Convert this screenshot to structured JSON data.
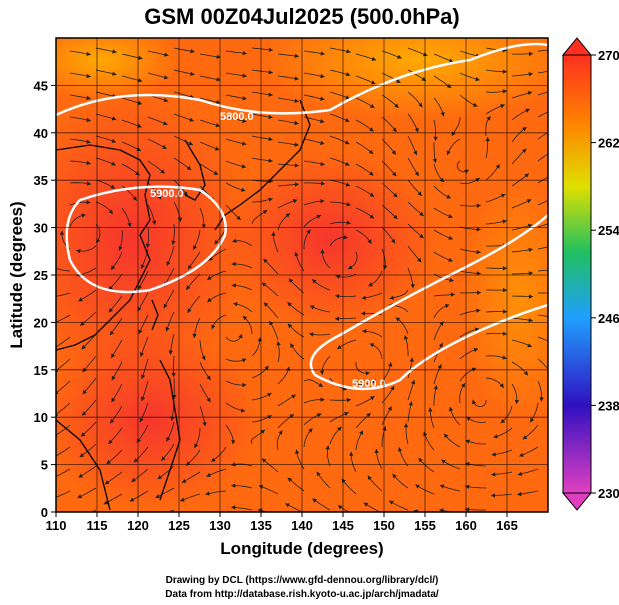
{
  "chart_data": {
    "type": "heatmap",
    "title": "GSM 00Z04Jul2025 (500.0hPa)",
    "xlabel": "Longitude (degrees)",
    "ylabel": "Latitude  (degrees)",
    "xlim": [
      110,
      170
    ],
    "ylim": [
      0,
      50
    ],
    "xticks": [
      "110",
      "115",
      "120",
      "125",
      "130",
      "135",
      "140",
      "145",
      "150",
      "155",
      "160",
      "165"
    ],
    "yticks": [
      "0",
      "5",
      "10",
      "15",
      "20",
      "25",
      "30",
      "35",
      "40",
      "45"
    ],
    "colorbar": {
      "ticks": [
        "230",
        "238",
        "246",
        "254",
        "262",
        "270"
      ],
      "range": [
        230,
        270
      ],
      "colors": [
        "#e040c0",
        "#4020c0",
        "#20a0ff",
        "#20c060",
        "#e0e000",
        "#ff7000",
        "#ff2020"
      ]
    },
    "contours": [
      {
        "label": "5800.0",
        "lon": 133,
        "lat": 44
      },
      {
        "label": "5900.0",
        "lon": 122,
        "lat": 35
      },
      {
        "label": "5900.0",
        "lon": 152,
        "lat": 15
      }
    ],
    "fill_mean": 266,
    "credits": [
      "Drawing by DCL (https://www.gfd-dennou.org/library/dcl/)",
      "Data from http://database.rish.kyoto-u.ac.jp/arch/jmadata/"
    ]
  }
}
